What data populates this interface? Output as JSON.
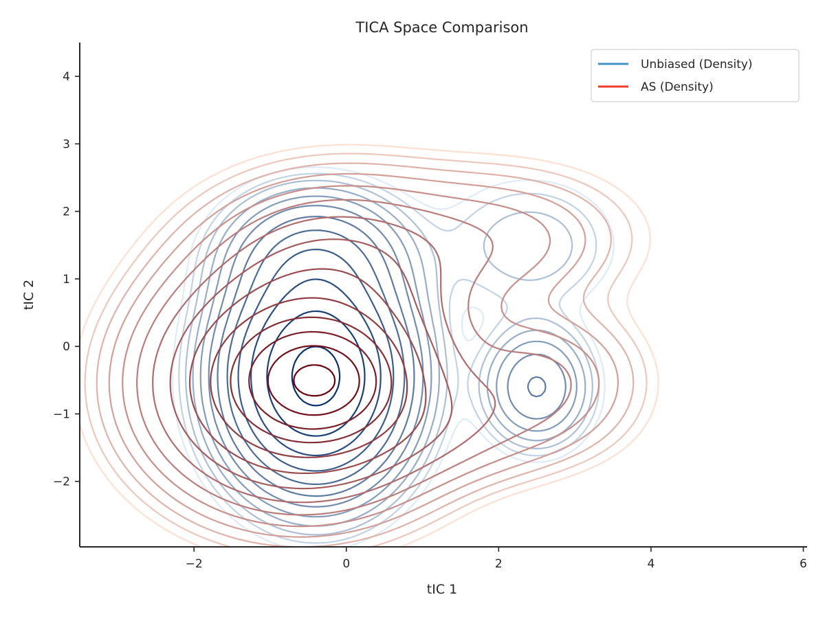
{
  "chart_data": {
    "type": "contour",
    "title": "TICA Space Comparison",
    "xlabel": "tIC 1",
    "ylabel": "tIC 2",
    "xlim": [
      -3.5,
      6.05
    ],
    "ylim": [
      -2.97,
      4.5
    ],
    "x_ticks": [
      -2,
      0,
      2,
      4,
      6
    ],
    "y_ticks": [
      -2,
      -1,
      0,
      1,
      2,
      3,
      4
    ],
    "x_tick_labels": [
      "−2",
      "0",
      "2",
      "4",
      "6"
    ],
    "y_tick_labels": [
      "−2",
      "−1",
      "0",
      "1",
      "2",
      "3",
      "4"
    ],
    "grid": false,
    "legend_position": "top-right",
    "series": [
      {
        "name": "Unbiased (Density)",
        "legend_color": "#4292c6",
        "color_light": "#deebf7",
        "color_dark": "#08306b",
        "components": [
          {
            "x": -0.4,
            "y": -0.45,
            "sx": 0.62,
            "sy": 0.85,
            "w": 1.0
          },
          {
            "x": -0.4,
            "y": 1.3,
            "sx": 0.65,
            "sy": 0.55,
            "w": 0.18
          },
          {
            "x": 2.5,
            "y": -0.6,
            "sx": 0.4,
            "sy": 0.5,
            "w": 0.12
          },
          {
            "x": 2.4,
            "y": 1.5,
            "sx": 0.75,
            "sy": 0.65,
            "w": 0.03
          }
        ],
        "n_levels": 12,
        "level_min_frac": 0.01,
        "level_max_frac": 0.88
      },
      {
        "name": "AS (Density)",
        "legend_color": "#ef3b2c",
        "color_light": "#fee0d2",
        "color_dark": "#67000d",
        "components": [
          {
            "x": -0.4,
            "y": -0.5,
            "sx": 0.5,
            "sy": 0.42,
            "w": 1.0
          },
          {
            "x": -0.6,
            "y": -0.55,
            "sx": 1.05,
            "sy": 0.95,
            "w": 0.5
          },
          {
            "x": -0.1,
            "y": 1.3,
            "sx": 1.05,
            "sy": 0.75,
            "w": 0.1
          },
          {
            "x": 2.1,
            "y": 1.6,
            "sx": 1.05,
            "sy": 0.65,
            "w": 0.045
          },
          {
            "x": 2.6,
            "y": -0.45,
            "sx": 0.75,
            "sy": 0.6,
            "w": 0.06
          },
          {
            "x": 1.3,
            "y": -1.2,
            "sx": 1.1,
            "sy": 0.5,
            "w": 0.05
          }
        ],
        "n_levels": 14,
        "level_min_frac": 0.006,
        "level_max_frac": 0.9
      }
    ]
  }
}
